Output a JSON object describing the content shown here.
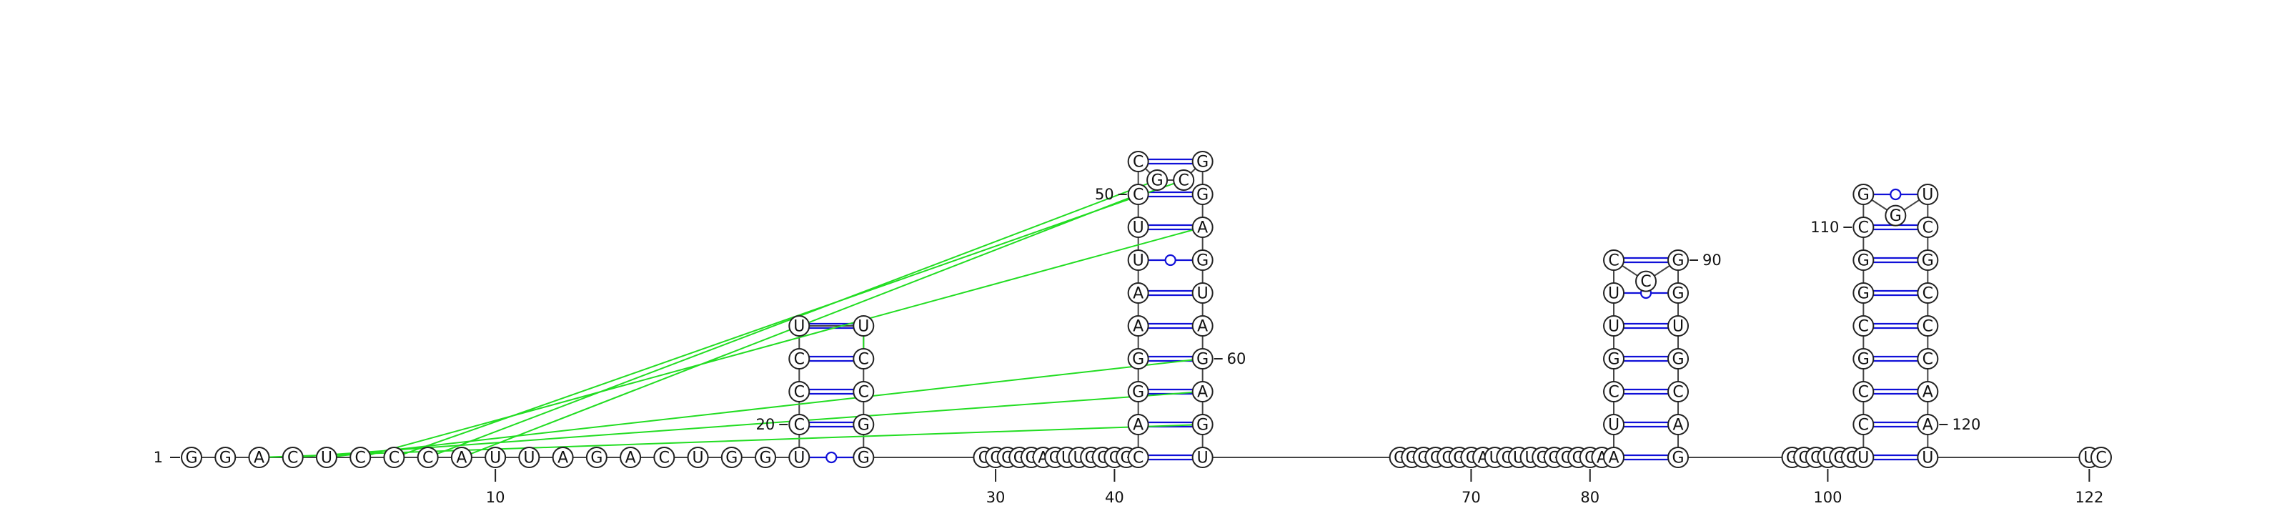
{
  "sequence": "GGACUCCCAUUAGACUGGUCCCUUCCGGCCGGGAGUUGCCGCAGGAAUUCCGCGGAGUAGAGUGGGCCGCAUCUUGGCGCAAUCGUUCCGGUGCAGGCCUGCUCCGCGGCGGUCGCCCAAUUC",
  "colors": {
    "canonical_pair": "#1010d8",
    "gu_pair": "#1010d8",
    "pseudoknot": "#22dd22",
    "backbone": "#444444"
  },
  "stems": [
    {
      "i": 19,
      "j": 28,
      "len": 5
    },
    {
      "i": 42,
      "j": 63,
      "len": 10
    },
    {
      "i": 82,
      "j": 96,
      "len": 7
    },
    {
      "i": 103,
      "j": 121,
      "len": 9
    }
  ],
  "pseudoknot_pairs": [
    [
      3,
      62
    ],
    [
      4,
      61
    ],
    [
      5,
      60
    ],
    [
      6,
      56
    ],
    [
      7,
      53
    ],
    [
      8,
      52
    ],
    [
      9,
      50
    ],
    [
      24,
      25
    ]
  ],
  "position_labels": [
    {
      "text": "1",
      "index": 1
    },
    {
      "text": "10",
      "index": 10
    },
    {
      "text": "20",
      "index": 20
    },
    {
      "text": "30",
      "index": 30
    },
    {
      "text": "40",
      "index": 40
    },
    {
      "text": "50",
      "index": 50
    },
    {
      "text": "60",
      "index": 60
    },
    {
      "text": "70",
      "index": 70
    },
    {
      "text": "80",
      "index": 80
    },
    {
      "text": "90",
      "index": 90
    },
    {
      "text": "100",
      "index": 100
    },
    {
      "text": "110",
      "index": 110
    },
    {
      "text": "120",
      "index": 120
    },
    {
      "text": "122",
      "index": 122
    }
  ]
}
